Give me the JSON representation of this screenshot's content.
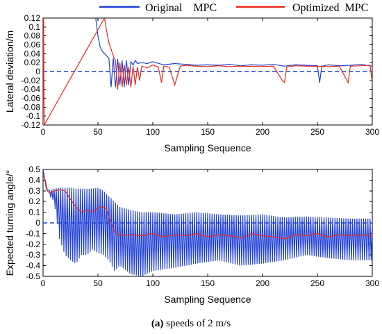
{
  "legend": {
    "items": [
      {
        "label": "Original    MPC",
        "color": "#1f3fd6"
      },
      {
        "label": "Optimized  MPC",
        "color": "#e8261b"
      }
    ]
  },
  "caption": {
    "label": "(a)",
    "text": " speeds of 2 m/s"
  },
  "chart_data": [
    {
      "type": "line",
      "xlabel": "Sampling Sequence",
      "ylabel": "Lateral deviation/m",
      "xlim": [
        0,
        300
      ],
      "ylim": [
        -0.12,
        0.12
      ],
      "xticks": [
        "0",
        "50",
        "100",
        "150",
        "200",
        "250",
        "300"
      ],
      "yticks": [
        "-0.12",
        "-0.1",
        "-0.08",
        "-0.06",
        "-0.04",
        "-0.02",
        "0",
        "0.02",
        "0.04",
        "0.06",
        "0.08",
        "0.1",
        "0.12"
      ],
      "reference_line": {
        "y": 0,
        "style": "dashed",
        "color": "#1f3fd6"
      },
      "series": [
        {
          "name": "Original    MPC",
          "color": "#1f3fd6",
          "x": [
            48,
            50,
            52,
            54,
            56,
            58,
            60,
            62,
            64,
            66,
            68,
            70,
            72,
            74,
            76,
            78,
            80,
            82,
            84,
            86,
            90,
            95,
            100,
            110,
            120,
            130,
            140,
            150,
            160,
            170,
            180,
            190,
            200,
            210,
            220,
            230,
            240,
            250,
            252,
            254,
            260,
            270,
            280,
            290,
            300
          ],
          "y": [
            0.12,
            0.08,
            0.055,
            0.045,
            0.04,
            0.035,
            0.03,
            -0.035,
            0.03,
            -0.035,
            0.028,
            -0.03,
            0.025,
            -0.035,
            0.025,
            -0.03,
            0.022,
            0.015,
            0.025,
            0.018,
            0.02,
            0.018,
            0.022,
            0.015,
            0.018,
            0.016,
            0.014,
            0.015,
            0.014,
            0.016,
            0.013,
            0.015,
            0.014,
            0.016,
            0.012,
            0.015,
            0.014,
            0.013,
            -0.025,
            0.012,
            0.015,
            0.013,
            0.014,
            0.016,
            0.012
          ]
        },
        {
          "name": "Optimized  MPC",
          "color": "#e8261b",
          "x": [
            0,
            0.5,
            1,
            56,
            58,
            60,
            62,
            64,
            66,
            68,
            70,
            72,
            74,
            76,
            78,
            80,
            82,
            84,
            86,
            88,
            90,
            95,
            100,
            105,
            108,
            110,
            115,
            120,
            125,
            130,
            140,
            150,
            160,
            170,
            180,
            200,
            210,
            218,
            220,
            222,
            230,
            240,
            260,
            270,
            278,
            280,
            290,
            298,
            300
          ],
          "y": [
            -0.12,
            0.12,
            -0.12,
            0.12,
            0.09,
            0.065,
            0.05,
            0.035,
            0.025,
            -0.04,
            0.02,
            -0.035,
            0.015,
            -0.03,
            0.01,
            -0.035,
            0.012,
            -0.03,
            0.01,
            -0.02,
            0.012,
            0.008,
            0.015,
            0.01,
            -0.025,
            0.012,
            0.01,
            -0.03,
            0.012,
            0.014,
            0.012,
            0.011,
            0.013,
            0.011,
            0.012,
            0.011,
            0.012,
            -0.02,
            -0.025,
            0.01,
            0.013,
            0.012,
            0.011,
            0.012,
            -0.025,
            0.012,
            0.013,
            0.014,
            -0.025
          ]
        }
      ]
    },
    {
      "type": "line",
      "xlabel": "Sampling Sequence",
      "ylabel": "Expected turning angle/°",
      "xlim": [
        0,
        300
      ],
      "ylim": [
        -0.5,
        0.5
      ],
      "xticks": [
        "0",
        "50",
        "100",
        "150",
        "200",
        "250",
        "300"
      ],
      "yticks": [
        "-0.5",
        "-0.4",
        "-0.3",
        "-0.2",
        "-0.1",
        "0",
        "0.1",
        "0.2",
        "0.3",
        "0.4",
        "0.5"
      ],
      "reference_line": {
        "y": 0,
        "style": "dashed",
        "color": "#1f3fd6"
      },
      "series": [
        {
          "name": "Original    MPC",
          "color": "#1f3fd6",
          "note_pattern": "oscillating",
          "x": [
            0,
            3,
            6,
            10,
            15,
            20,
            25,
            30,
            35,
            40,
            45,
            50,
            55,
            60,
            65,
            70,
            80,
            90,
            100,
            120,
            140,
            160,
            180,
            200,
            220,
            240,
            260,
            280,
            300
          ],
          "upper": [
            0.5,
            0.32,
            0.3,
            0.32,
            0.33,
            0.33,
            0.33,
            0.32,
            0.32,
            0.32,
            0.32,
            0.33,
            0.3,
            0.25,
            0.2,
            0.15,
            0.12,
            0.1,
            0.1,
            0.08,
            0.1,
            0.08,
            0.07,
            0.08,
            0.05,
            0.06,
            0.05,
            0.04,
            0.04
          ],
          "lower": [
            0.5,
            0.28,
            0.25,
            0.2,
            -0.15,
            -0.3,
            -0.35,
            -0.38,
            -0.3,
            -0.3,
            -0.25,
            -0.28,
            -0.3,
            -0.35,
            -0.45,
            -0.4,
            -0.48,
            -0.5,
            -0.45,
            -0.42,
            -0.38,
            -0.35,
            -0.4,
            -0.38,
            -0.35,
            -0.3,
            -0.33,
            -0.35,
            -0.35
          ]
        },
        {
          "name": "Optimized  MPC",
          "color": "#e8261b",
          "x": [
            0,
            2,
            4,
            6,
            10,
            15,
            20,
            25,
            30,
            35,
            40,
            45,
            50,
            55,
            58,
            60,
            65,
            70,
            80,
            90,
            100,
            110,
            120,
            130,
            140,
            150,
            160,
            170,
            180,
            190,
            200,
            210,
            220,
            230,
            240,
            250,
            260,
            270,
            280,
            290,
            300
          ],
          "y": [
            0.45,
            0.4,
            0.3,
            0.28,
            0.3,
            0.31,
            0.3,
            0.22,
            0.15,
            0.1,
            0.12,
            0.1,
            0.14,
            0.15,
            0.13,
            0.05,
            -0.08,
            -0.12,
            -0.11,
            -0.12,
            -0.1,
            -0.13,
            -0.11,
            -0.12,
            -0.1,
            -0.13,
            -0.11,
            -0.12,
            -0.14,
            -0.1,
            -0.12,
            -0.13,
            -0.15,
            -0.11,
            -0.12,
            -0.1,
            -0.13,
            -0.11,
            -0.12,
            -0.11,
            -0.12
          ]
        }
      ]
    }
  ]
}
